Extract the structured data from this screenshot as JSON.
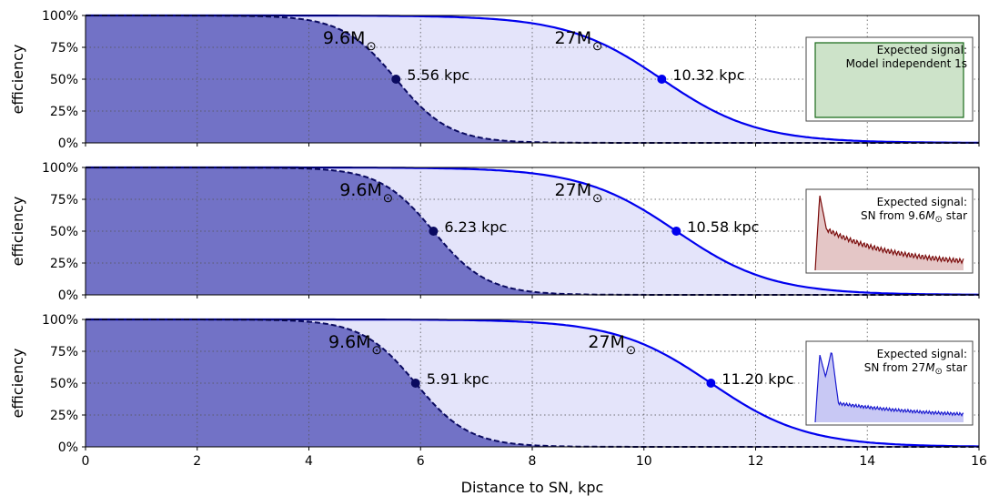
{
  "chart_data": {
    "type": "area",
    "xlabel": "Distance to SN, kpc",
    "ylabel": "efficiency",
    "xlim": [
      0,
      16
    ],
    "ylim": [
      0,
      100
    ],
    "x_ticks": [
      "0",
      "2",
      "4",
      "6",
      "8",
      "10",
      "12",
      "14",
      "16"
    ],
    "y_ticks": [
      "0%",
      "25%",
      "50%",
      "75%",
      "100%"
    ],
    "grid": true,
    "colors": {
      "light_fill": "#e4e4fa",
      "dark_fill": "#7272c6",
      "curve_27": "#0000ee",
      "curve_96": "#0a0a60",
      "inset_model": "#1a6b1a",
      "inset_model_fill": "#cde3c9",
      "inset_96": "#7a0a0a",
      "inset_96_fill": "#e4c6c6",
      "inset_27": "#1a1ad0",
      "inset_27_fill": "#c8c8f4"
    },
    "panels": [
      {
        "series": [
          {
            "mass": "9.6M",
            "label_x": 4.25,
            "label_y": 78,
            "d50": 5.56,
            "d50_label": "5.56 kpc",
            "width": 0.48
          },
          {
            "mass": "27M",
            "label_x": 8.4,
            "label_y": 78,
            "d50": 10.32,
            "d50_label": "10.32 kpc",
            "width": 0.85
          }
        ],
        "inset": {
          "line1": "Expected signal:",
          "line2": "Model independent 1s",
          "shape": "box"
        }
      },
      {
        "series": [
          {
            "mass": "9.6M",
            "label_x": 4.55,
            "label_y": 78,
            "d50": 6.23,
            "d50_label": "6.23 kpc",
            "width": 0.48
          },
          {
            "mass": "27M",
            "label_x": 8.4,
            "label_y": 78,
            "d50": 10.58,
            "d50_label": "10.58 kpc",
            "width": 0.85
          }
        ],
        "inset": {
          "line1": "Expected signal:",
          "line2_pre": "SN from 9.6",
          "line2_post": " star",
          "shape": "peak"
        }
      },
      {
        "series": [
          {
            "mass": "9.6M",
            "label_x": 4.35,
            "label_y": 78,
            "d50": 5.91,
            "d50_label": "5.91 kpc",
            "width": 0.48
          },
          {
            "mass": "27M",
            "label_x": 9.0,
            "label_y": 78,
            "d50": 11.2,
            "d50_label": "11.20 kpc",
            "width": 0.85
          }
        ],
        "inset": {
          "line1": "Expected signal:",
          "line2_pre": "SN from 27",
          "line2_post": " star",
          "shape": "double"
        }
      }
    ]
  }
}
